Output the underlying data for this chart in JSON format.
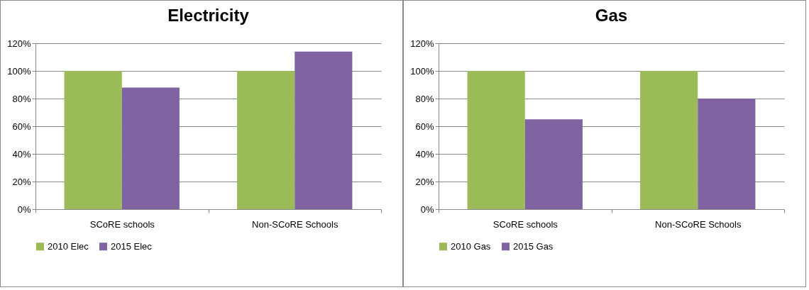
{
  "chart_data": [
    {
      "type": "bar",
      "title": "Electricity",
      "categories": [
        "SCoRE schools",
        "Non-SCoRE Schools"
      ],
      "series": [
        {
          "name": "2010 Elec",
          "color": "#9bbb59",
          "values": [
            100,
            100
          ]
        },
        {
          "name": "2015 Elec",
          "color": "#8064a2",
          "values": [
            88,
            114
          ]
        }
      ],
      "ylim": [
        0,
        120
      ],
      "yticks": [
        {
          "value": 0,
          "label": "0%"
        },
        {
          "value": 20,
          "label": "20%"
        },
        {
          "value": 40,
          "label": "40%"
        },
        {
          "value": 60,
          "label": "60%"
        },
        {
          "value": 80,
          "label": "80%"
        },
        {
          "value": 100,
          "label": "100%"
        },
        {
          "value": 120,
          "label": "120%"
        }
      ],
      "grid": "y",
      "legend": "bottom"
    },
    {
      "type": "bar",
      "title": "Gas",
      "categories": [
        "SCoRE schools",
        "Non-SCoRE Schools"
      ],
      "series": [
        {
          "name": "2010 Gas",
          "color": "#9bbb59",
          "values": [
            100,
            100
          ]
        },
        {
          "name": "2015 Gas",
          "color": "#8064a2",
          "values": [
            65,
            80
          ]
        }
      ],
      "ylim": [
        0,
        120
      ],
      "yticks": [
        {
          "value": 0,
          "label": "0%"
        },
        {
          "value": 20,
          "label": "20%"
        },
        {
          "value": 40,
          "label": "40%"
        },
        {
          "value": 60,
          "label": "60%"
        },
        {
          "value": 80,
          "label": "80%"
        },
        {
          "value": 100,
          "label": "100%"
        },
        {
          "value": 120,
          "label": "120%"
        }
      ],
      "grid": "y",
      "legend": "bottom"
    }
  ]
}
